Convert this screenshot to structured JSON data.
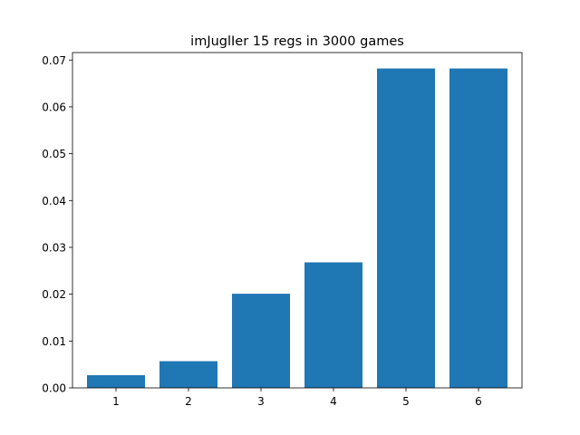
{
  "chart_data": {
    "type": "bar",
    "title": "imJuglIer 15 regs in 3000 games",
    "xlabel": "",
    "ylabel": "",
    "categories": [
      "1",
      "2",
      "3",
      "4",
      "5",
      "6"
    ],
    "values": [
      0.0027,
      0.0057,
      0.0201,
      0.0268,
      0.0682,
      0.0682
    ],
    "ylim": [
      0,
      0.0716
    ],
    "yticks": [
      0.0,
      0.01,
      0.02,
      0.03,
      0.04,
      0.05,
      0.06,
      0.07
    ],
    "ytick_labels": [
      "0.00",
      "0.01",
      "0.02",
      "0.03",
      "0.04",
      "0.05",
      "0.06",
      "0.07"
    ],
    "bar_color": "#1f77b4",
    "grid": false,
    "legend": false
  }
}
